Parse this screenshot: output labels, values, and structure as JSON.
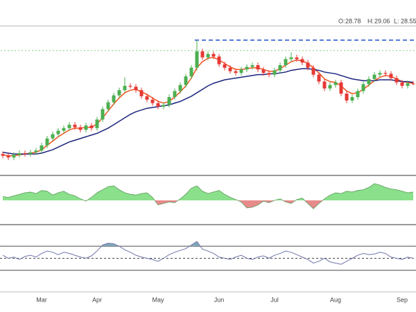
{
  "chart_data": [
    {
      "type": "candlestick",
      "header": [
        {
          "label": "O:",
          "value": "28.78"
        },
        {
          "label": "H:",
          "value": "29.06"
        },
        {
          "label": "L:",
          "value": "28.55"
        }
      ],
      "categories": [
        null,
        null,
        null,
        null,
        null,
        null,
        null,
        "Mar",
        null,
        null,
        null,
        null,
        null,
        null,
        null,
        null,
        null,
        "Apr",
        null,
        null,
        null,
        null,
        null,
        null,
        null,
        null,
        null,
        null,
        "May",
        null,
        null,
        null,
        null,
        null,
        null,
        null,
        null,
        null,
        null,
        "Jun",
        null,
        null,
        null,
        null,
        null,
        null,
        null,
        null,
        null,
        "Jul",
        null,
        null,
        null,
        null,
        null,
        null,
        null,
        null,
        null,
        null,
        "Aug",
        null,
        null,
        null,
        null,
        null,
        null,
        null,
        null,
        null,
        null,
        null,
        "Sep",
        null,
        null
      ],
      "open": [
        20.6,
        20.4,
        20.2,
        20.5,
        20.7,
        20.6,
        20.8,
        21.0,
        21.6,
        22.4,
        22.9,
        23.3,
        23.6,
        24.0,
        23.7,
        23.4,
        23.9,
        23.6,
        24.6,
        25.8,
        26.6,
        27.4,
        28.0,
        28.5,
        28.4,
        28.0,
        27.3,
        26.9,
        26.5,
        26.1,
        26.3,
        27.2,
        27.9,
        28.6,
        29.6,
        30.6,
        32.5,
        31.8,
        32.2,
        31.9,
        31.0,
        30.6,
        30.2,
        30.0,
        30.4,
        30.7,
        30.9,
        30.4,
        30.0,
        29.8,
        30.3,
        30.9,
        31.6,
        31.8,
        31.6,
        31.2,
        30.6,
        29.8,
        29.0,
        28.2,
        28.6,
        28.9,
        27.6,
        26.8,
        27.2,
        27.9,
        28.7,
        29.3,
        29.8,
        30.0,
        29.9,
        29.4,
        28.9,
        28.5,
        28.78
      ],
      "high": [
        20.9,
        20.7,
        20.8,
        21.0,
        21.0,
        21.1,
        21.3,
        21.9,
        22.7,
        23.2,
        23.6,
        23.9,
        24.3,
        24.3,
        24.0,
        24.2,
        24.2,
        24.9,
        26.1,
        26.9,
        27.7,
        28.3,
        29.5,
        28.8,
        28.7,
        28.3,
        27.6,
        27.2,
        26.8,
        26.6,
        27.5,
        28.2,
        28.9,
        29.9,
        30.9,
        33.8,
        32.8,
        32.5,
        32.5,
        32.2,
        31.3,
        30.9,
        30.5,
        30.7,
        31.0,
        31.2,
        31.2,
        30.7,
        30.3,
        30.6,
        31.2,
        31.9,
        32.4,
        32.1,
        31.9,
        31.5,
        30.9,
        30.1,
        29.3,
        28.9,
        29.2,
        29.2,
        27.9,
        27.5,
        28.2,
        29.0,
        29.6,
        30.1,
        30.3,
        30.3,
        30.2,
        29.7,
        29.2,
        29.1,
        29.06
      ],
      "low": [
        20.1,
        19.9,
        19.9,
        20.2,
        20.3,
        20.3,
        20.5,
        20.7,
        21.3,
        22.1,
        22.6,
        23.0,
        23.3,
        23.4,
        23.1,
        23.1,
        23.3,
        23.3,
        24.3,
        25.5,
        26.3,
        27.1,
        27.7,
        28.2,
        27.7,
        27.0,
        26.6,
        26.2,
        25.8,
        25.8,
        26.0,
        26.9,
        27.6,
        28.3,
        29.3,
        30.3,
        31.5,
        31.5,
        31.6,
        30.7,
        30.3,
        29.9,
        29.7,
        29.7,
        30.1,
        30.4,
        30.1,
        29.7,
        29.5,
        29.5,
        30.0,
        30.6,
        31.3,
        31.3,
        30.9,
        30.3,
        29.5,
        28.7,
        27.9,
        27.9,
        28.3,
        27.3,
        26.5,
        26.5,
        26.9,
        27.6,
        28.4,
        29.0,
        29.5,
        29.6,
        29.1,
        28.6,
        28.2,
        28.2,
        28.55
      ],
      "close": [
        20.4,
        20.2,
        20.5,
        20.7,
        20.6,
        20.8,
        21.0,
        21.6,
        22.4,
        22.9,
        23.3,
        23.6,
        24.0,
        23.7,
        23.4,
        23.9,
        23.6,
        24.6,
        25.8,
        26.6,
        27.4,
        28.0,
        28.5,
        28.4,
        28.0,
        27.3,
        26.9,
        26.5,
        26.1,
        26.3,
        27.2,
        27.9,
        28.6,
        29.6,
        30.6,
        32.5,
        31.8,
        32.2,
        31.9,
        31.0,
        30.6,
        30.2,
        30.0,
        30.4,
        30.7,
        30.9,
        30.4,
        30.0,
        29.8,
        30.3,
        30.9,
        31.6,
        31.8,
        31.6,
        31.2,
        30.6,
        29.8,
        29.0,
        28.2,
        28.6,
        28.9,
        27.6,
        26.8,
        27.2,
        27.9,
        28.7,
        29.3,
        29.8,
        30.0,
        29.9,
        29.4,
        28.9,
        28.5,
        28.8,
        28.7
      ],
      "up_color": "#4caf50",
      "down_color": "#e53935",
      "series": [
        {
          "color": "#f4511e",
          "values": [
            20.5,
            20.4,
            20.4,
            20.5,
            20.6,
            20.7,
            20.8,
            21.1,
            21.6,
            22.1,
            22.6,
            23.0,
            23.4,
            23.6,
            23.6,
            23.7,
            23.7,
            24.1,
            24.8,
            25.6,
            26.4,
            27.1,
            27.7,
            28.0,
            28.1,
            27.8,
            27.5,
            27.1,
            26.7,
            26.5,
            26.7,
            27.2,
            27.8,
            28.5,
            29.4,
            30.6,
            31.3,
            31.7,
            31.8,
            31.5,
            31.1,
            30.7,
            30.4,
            30.4,
            30.5,
            30.6,
            30.6,
            30.4,
            30.2,
            30.2,
            30.5,
            30.9,
            31.3,
            31.5,
            31.4,
            31.1,
            30.6,
            30.0,
            29.3,
            29.0,
            28.9,
            28.5,
            27.9,
            27.6,
            27.7,
            28.1,
            28.6,
            29.1,
            29.5,
            29.7,
            29.6,
            29.3,
            29.0,
            28.9,
            28.8
          ]
        },
        {
          "color": "#1a237e",
          "values": [
            20.8,
            20.7,
            20.6,
            20.6,
            20.6,
            20.6,
            20.6,
            20.7,
            20.9,
            21.1,
            21.4,
            21.7,
            22.0,
            22.2,
            22.4,
            22.6,
            22.8,
            23.0,
            23.3,
            23.6,
            24.0,
            24.4,
            24.8,
            25.2,
            25.5,
            25.7,
            25.9,
            26.0,
            26.1,
            26.2,
            26.3,
            26.5,
            26.7,
            27.0,
            27.3,
            27.7,
            28.1,
            28.5,
            28.8,
            29.0,
            29.2,
            29.3,
            29.4,
            29.5,
            29.6,
            29.7,
            29.8,
            29.8,
            29.9,
            29.9,
            30.0,
            30.1,
            30.3,
            30.4,
            30.5,
            30.5,
            30.4,
            30.3,
            30.1,
            30.0,
            29.9,
            29.7,
            29.5,
            29.3,
            29.2,
            29.1,
            29.1,
            29.1,
            29.2,
            29.2,
            29.2,
            29.1,
            29.0,
            29.0,
            28.9
          ]
        }
      ],
      "hlines": [
        {
          "value": 33.8,
          "color": "#1f4fd1",
          "style": "dashed",
          "start_index": 35
        },
        {
          "value": 32.6,
          "color": "#7ed07e",
          "style": "dotted",
          "start_index": 0
        }
      ],
      "ylim": [
        18.2,
        35.4
      ]
    },
    {
      "type": "area",
      "values": [
        0.25,
        0.2,
        0.3,
        0.4,
        0.5,
        0.55,
        0.45,
        0.65,
        0.6,
        0.35,
        0.5,
        0.6,
        0.4,
        0.3,
        0.1,
        -0.05,
        0.2,
        0.5,
        0.7,
        0.9,
        0.95,
        0.7,
        0.5,
        0.4,
        0.35,
        0.45,
        0.5,
        0.2,
        -0.3,
        -0.2,
        -0.1,
        -0.15,
        0.1,
        0.4,
        0.8,
        0.95,
        0.6,
        0.45,
        0.55,
        0.65,
        0.4,
        0.2,
        0.05,
        -0.1,
        -0.5,
        -0.45,
        -0.3,
        -0.05,
        -0.15,
        0.0,
        0.1,
        -0.1,
        -0.2,
        0.05,
        0.15,
        -0.2,
        -0.55,
        -0.2,
        0.1,
        0.35,
        0.5,
        0.45,
        0.6,
        0.55,
        0.65,
        0.7,
        0.85,
        1.1,
        1.0,
        0.85,
        0.75,
        0.7,
        0.6,
        0.5,
        0.55
      ],
      "positive_color": "#8be08b",
      "negative_color": "#e88a8a",
      "ylim": [
        -1.5,
        1.5
      ]
    },
    {
      "type": "line",
      "values": [
        55,
        50,
        52,
        48,
        53,
        55,
        52,
        58,
        62,
        60,
        56,
        60,
        58,
        55,
        52,
        50,
        54,
        62,
        72,
        75,
        74,
        70,
        64,
        60,
        55,
        52,
        50,
        48,
        45,
        50,
        56,
        60,
        63,
        66,
        72,
        78,
        65,
        62,
        58,
        52,
        50,
        48,
        52,
        55,
        50,
        48,
        52,
        54,
        50,
        55,
        58,
        62,
        60,
        56,
        52,
        48,
        42,
        45,
        50,
        44,
        42,
        40,
        45,
        50,
        55,
        58,
        56,
        57,
        60,
        58,
        52,
        50,
        48,
        52,
        50
      ],
      "color": "#6f74a8",
      "fill_color": "#7fa7b8",
      "levels": [
        70,
        30,
        50
      ],
      "ylim": [
        0,
        100
      ]
    }
  ]
}
